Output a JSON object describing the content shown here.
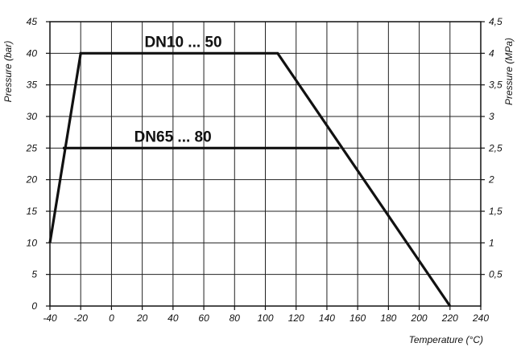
{
  "chart_data": {
    "type": "line",
    "title": "",
    "xlabel": "Temperature (°C)",
    "ylabel": "Pressure (bar)",
    "y2label": "Pressure (MPa)",
    "xlim": [
      -40,
      240
    ],
    "ylim": [
      0,
      45
    ],
    "y2lim": [
      0,
      4.5
    ],
    "grid": true,
    "x_ticks": [
      "-40",
      "-20",
      "0",
      "20",
      "40",
      "60",
      "80",
      "100",
      "120",
      "140",
      "160",
      "180",
      "200",
      "220",
      "240"
    ],
    "y_ticks": [
      "0",
      "5",
      "10",
      "15",
      "20",
      "25",
      "30",
      "35",
      "40",
      "45"
    ],
    "y2_ticks": [
      "0,5",
      "1",
      "1,5",
      "2",
      "2,5",
      "3",
      "3,5",
      "4",
      "4,5"
    ],
    "series": [
      {
        "name": "DN10 ... 50",
        "x": [
          -40,
          -20,
          108,
          220
        ],
        "y": [
          10,
          40,
          40,
          0
        ]
      },
      {
        "name": "DN65 ... 80",
        "x": [
          -31.6,
          148
        ],
        "y": [
          25,
          25
        ]
      }
    ]
  }
}
